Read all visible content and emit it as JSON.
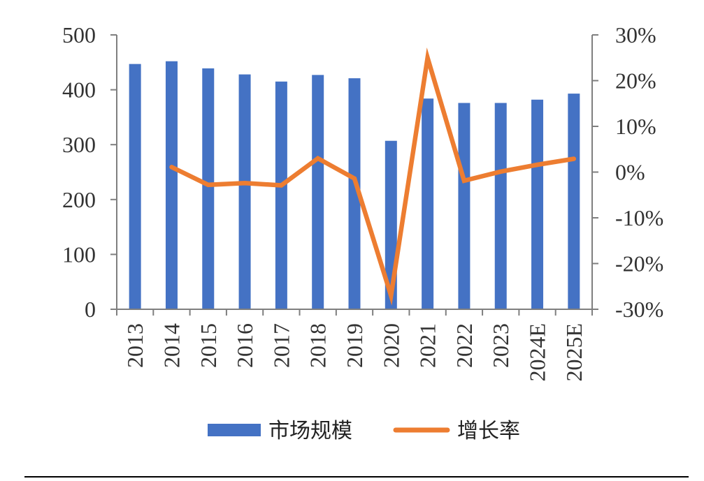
{
  "chart_data": {
    "type": "bar",
    "categories": [
      "2013",
      "2014",
      "2015",
      "2016",
      "2017",
      "2018",
      "2019",
      "2020",
      "2021",
      "2022",
      "2023",
      "2024E",
      "2025E"
    ],
    "series": [
      {
        "name": "市场规模",
        "type": "bar",
        "axis": "left",
        "color": "#4472C4",
        "values": [
          447,
          452,
          439,
          428,
          415,
          427,
          421,
          307,
          384,
          376,
          376,
          382,
          393
        ]
      },
      {
        "name": "增长率",
        "type": "line",
        "axis": "right",
        "color": "#ED7D31",
        "values": [
          null,
          1.1,
          -2.8,
          -2.4,
          -2.9,
          3.0,
          -1.4,
          -27.0,
          25.0,
          -1.9,
          0.1,
          1.6,
          2.9
        ]
      }
    ],
    "y_left": {
      "min": 0,
      "max": 500,
      "ticks": [
        0,
        100,
        200,
        300,
        400,
        500
      ]
    },
    "y_right": {
      "min": -30,
      "max": 30,
      "ticks": [
        "-30%",
        "-20%",
        "-10%",
        "0%",
        "10%",
        "20%",
        "30%"
      ],
      "tick_values": [
        -30,
        -20,
        -10,
        0,
        10,
        20,
        30
      ]
    },
    "legend_position": "bottom",
    "grid": false,
    "axis_color": "#7F7F7F"
  }
}
